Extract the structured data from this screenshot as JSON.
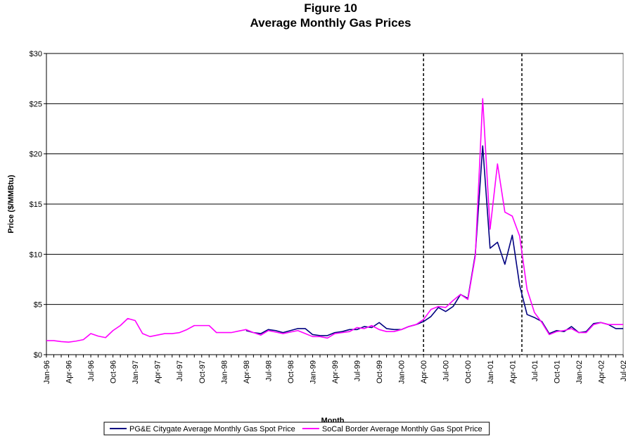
{
  "chart_data": {
    "type": "line",
    "title": "Figure 10",
    "subtitle": "Average Monthly Gas Prices",
    "x_label": "Month",
    "y_label": "Price ($/MMBtu)",
    "categories": [
      "Jan-96",
      null,
      null,
      "Apr-96",
      null,
      null,
      "Jul-96",
      null,
      null,
      "Oct-96",
      null,
      null,
      "Jan-97",
      null,
      null,
      "Apr-97",
      null,
      null,
      "Jul-97",
      null,
      null,
      "Oct-97",
      null,
      null,
      "Jan-98",
      null,
      null,
      "Apr-98",
      null,
      null,
      "Jul-98",
      null,
      null,
      "Oct-98",
      null,
      null,
      "Jan-99",
      null,
      null,
      "Apr-99",
      null,
      null,
      "Jul-99",
      null,
      null,
      "Oct-99",
      null,
      null,
      "Jan-00",
      null,
      null,
      "Apr-00",
      null,
      null,
      "Jul-00",
      null,
      null,
      "Oct-00",
      null,
      null,
      "Jan-01",
      null,
      null,
      "Apr-01",
      null,
      null,
      "Jul-01",
      null,
      null,
      "Oct-01",
      null,
      null,
      "Jan-02",
      null,
      null,
      "Apr-02",
      null,
      null,
      "Jul-02"
    ],
    "series": [
      {
        "name": "PG&E Citygate Average Monthly Gas Spot Price",
        "color": "#000080",
        "values": [
          null,
          null,
          null,
          null,
          null,
          null,
          null,
          null,
          null,
          null,
          null,
          null,
          null,
          null,
          null,
          null,
          null,
          null,
          null,
          null,
          null,
          null,
          null,
          null,
          null,
          null,
          null,
          2.4,
          2.2,
          2.1,
          2.5,
          2.4,
          2.2,
          2.4,
          2.6,
          2.6,
          2.0,
          1.9,
          1.9,
          2.2,
          2.3,
          2.5,
          2.5,
          2.8,
          2.7,
          3.2,
          2.6,
          2.5,
          2.5,
          2.8,
          3.0,
          3.3,
          3.8,
          4.7,
          4.3,
          4.8,
          6.0,
          5.6,
          10.0,
          20.8,
          10.6,
          11.2,
          9.0,
          11.9,
          6.9,
          4.0,
          3.7,
          3.3,
          2.1,
          2.4,
          2.3,
          2.8,
          2.2,
          2.3,
          3.1,
          3.2,
          3.0,
          2.6,
          2.6
        ]
      },
      {
        "name": "SoCal Border Average Monthly Gas Spot Price",
        "color": "#ff00ff",
        "values": [
          1.4,
          1.4,
          1.3,
          1.25,
          1.35,
          1.5,
          2.1,
          1.85,
          1.7,
          2.4,
          2.9,
          3.6,
          3.4,
          2.1,
          1.8,
          1.95,
          2.1,
          2.1,
          2.2,
          2.5,
          2.9,
          2.9,
          2.9,
          2.2,
          2.2,
          2.2,
          2.35,
          2.5,
          2.2,
          1.95,
          2.4,
          2.25,
          2.1,
          2.25,
          2.4,
          2.1,
          1.8,
          1.8,
          1.65,
          2.1,
          2.2,
          2.3,
          2.7,
          2.6,
          2.9,
          2.5,
          2.3,
          2.3,
          2.5,
          2.8,
          3.0,
          3.5,
          4.5,
          4.8,
          4.7,
          5.4,
          6.0,
          5.5,
          9.8,
          25.5,
          12.5,
          19.0,
          14.2,
          13.8,
          11.8,
          6.5,
          4.2,
          3.2,
          2.0,
          2.3,
          2.4,
          2.6,
          2.2,
          2.2,
          3.0,
          3.2,
          3.0,
          3.0,
          3.0
        ]
      }
    ],
    "ylim": [
      0,
      30
    ],
    "yticks": [
      {
        "value": 0,
        "label": "$0"
      },
      {
        "value": 5,
        "label": "$5"
      },
      {
        "value": 10,
        "label": "$10"
      },
      {
        "value": 15,
        "label": "$15"
      },
      {
        "value": 20,
        "label": "$20"
      },
      {
        "value": 25,
        "label": "$25"
      },
      {
        "value": 30,
        "label": "$30"
      }
    ],
    "grid": true,
    "legend": "bottom"
  }
}
